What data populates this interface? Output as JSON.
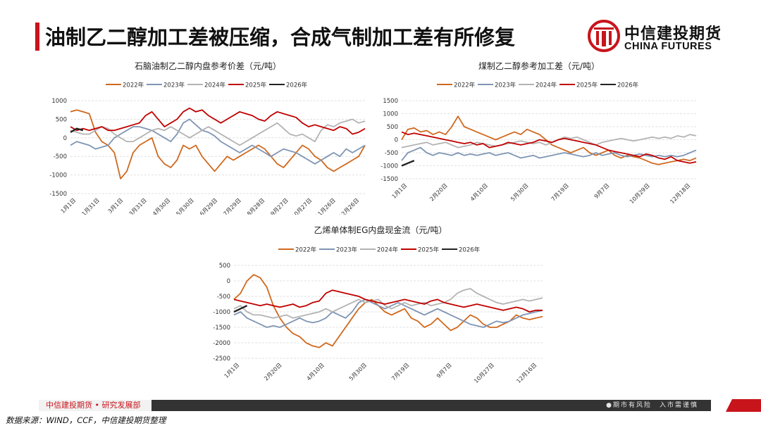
{
  "page": {
    "title": "油制乙二醇加工差被压缩，合成气制加工差有所修复",
    "source": "数据来源：WIND，CCF，中信建投期货整理"
  },
  "logo": {
    "cn": "中信建投期货",
    "en": "CHINA FUTURES"
  },
  "footer": {
    "left": "中信建投期货 • 研究发展部",
    "right": "●期市有风险　入市需谨慎"
  },
  "colors": {
    "2022年": "#d0691f",
    "2023年": "#7f95b3",
    "2024年": "#b3b3b3",
    "2025年": "#c00000",
    "2026年": "#222222",
    "accent": "#c8141b"
  },
  "chart_data": [
    {
      "type": "line",
      "title": "石脑油制乙二醇内盘参考价差（元/吨）",
      "ylim": [
        -1500,
        1000
      ],
      "yticks": [
        -1500,
        -1000,
        -500,
        0,
        500,
        1000
      ],
      "xticks": [
        "1月1日",
        "1月31日",
        "3月1日",
        "3月31日",
        "4月30日",
        "5月30日",
        "6月29日",
        "7月29日",
        "8月28日",
        "9月27日",
        "10月27日",
        "11月26日",
        "12月26日"
      ],
      "grid": "horizontal dashed",
      "legend": "top",
      "series": [
        {
          "name": "2022年",
          "values": [
            700,
            750,
            700,
            650,
            150,
            -100,
            -200,
            -400,
            -1100,
            -900,
            -400,
            -200,
            -100,
            0,
            -500,
            -700,
            -800,
            -600,
            -200,
            -300,
            -200,
            -500,
            -700,
            -900,
            -700,
            -500,
            -600,
            -500,
            -400,
            -300,
            -200,
            -300,
            -500,
            -700,
            -800,
            -600,
            -400,
            -200,
            -300,
            -500,
            -600,
            -800,
            -900,
            -800,
            -700,
            -600,
            -500,
            -200
          ]
        },
        {
          "name": "2023年",
          "values": [
            -200,
            -100,
            -150,
            -200,
            -300,
            -250,
            -200,
            0,
            100,
            200,
            300,
            300,
            250,
            200,
            100,
            0,
            -100,
            100,
            400,
            500,
            350,
            200,
            150,
            50,
            -100,
            -200,
            -300,
            -400,
            -300,
            -200,
            -300,
            -400,
            -500,
            -400,
            -300,
            -350,
            -400,
            -500,
            -600,
            -700,
            -600,
            -500,
            -400,
            -500,
            -300,
            -400,
            -300,
            -200
          ]
        },
        {
          "name": "2024年",
          "values": [
            200,
            150,
            100,
            100,
            200,
            300,
            250,
            100,
            0,
            -100,
            -100,
            0,
            100,
            200,
            250,
            200,
            300,
            200,
            100,
            0,
            100,
            200,
            300,
            200,
            100,
            0,
            -100,
            -200,
            -100,
            0,
            100,
            200,
            300,
            400,
            250,
            100,
            50,
            100,
            0,
            -100,
            200,
            350,
            300,
            400,
            450,
            500,
            400,
            450
          ]
        },
        {
          "name": "2025年",
          "values": [
            300,
            200,
            250,
            200,
            250,
            300,
            200,
            200,
            250,
            300,
            350,
            400,
            600,
            700,
            500,
            300,
            400,
            500,
            700,
            800,
            700,
            750,
            600,
            500,
            400,
            500,
            600,
            700,
            650,
            600,
            500,
            450,
            600,
            700,
            650,
            600,
            550,
            400,
            300,
            350,
            300,
            250,
            200,
            300,
            250,
            100,
            150,
            250
          ]
        },
        {
          "name": "2026年",
          "values": [
            150,
            250,
            200
          ]
        }
      ]
    },
    {
      "type": "line",
      "title": "煤制乙二醇参考加工差（元/吨）",
      "ylim": [
        -1500,
        1500
      ],
      "yticks": [
        -1500,
        -1000,
        -500,
        0,
        500,
        1000,
        1500
      ],
      "xticks": [
        "1月1日",
        "2月20日",
        "4月10日",
        "5月30日",
        "7月19日",
        "9月7日",
        "10月29日",
        "12月18日"
      ],
      "grid": "horizontal dashed",
      "legend": "top",
      "series": [
        {
          "name": "2022年",
          "values": [
            0,
            400,
            450,
            300,
            350,
            200,
            300,
            200,
            500,
            900,
            500,
            400,
            300,
            200,
            100,
            0,
            100,
            200,
            300,
            200,
            400,
            300,
            200,
            0,
            -200,
            -300,
            -400,
            -500,
            -400,
            -300,
            -500,
            -600,
            -500,
            -400,
            -600,
            -700,
            -600,
            -650,
            -700,
            -800,
            -900,
            -950,
            -900,
            -850,
            -800,
            -750,
            -800,
            -700
          ]
        },
        {
          "name": "2023年",
          "values": [
            -800,
            -500,
            -400,
            -300,
            -500,
            -600,
            -500,
            -550,
            -600,
            -500,
            -600,
            -550,
            -600,
            -550,
            -500,
            -600,
            -550,
            -500,
            -600,
            -700,
            -650,
            -600,
            -700,
            -650,
            -600,
            -550,
            -500,
            -550,
            -600,
            -650,
            -600,
            -500,
            -600,
            -550,
            -500,
            -600,
            -650,
            -600,
            -550,
            -600,
            -650,
            -600,
            -650,
            -600,
            -650,
            -600,
            -500,
            -400
          ]
        },
        {
          "name": "2024年",
          "values": [
            -300,
            -250,
            -200,
            -150,
            -100,
            -200,
            -150,
            -100,
            -200,
            -300,
            -250,
            -200,
            -100,
            -150,
            -200,
            -250,
            -200,
            -150,
            -100,
            -50,
            -100,
            -150,
            -100,
            -200,
            -100,
            0,
            100,
            50,
            100,
            0,
            -100,
            -200,
            -100,
            -50,
            0,
            50,
            0,
            -50,
            0,
            50,
            100,
            50,
            100,
            50,
            150,
            100,
            200,
            150
          ]
        },
        {
          "name": "2025年",
          "values": [
            300,
            200,
            250,
            200,
            150,
            100,
            50,
            0,
            -50,
            -100,
            -150,
            -100,
            -200,
            -150,
            -300,
            -250,
            -200,
            -100,
            -150,
            -200,
            -150,
            -100,
            0,
            -50,
            -100,
            0,
            50,
            0,
            -50,
            -100,
            -150,
            -200,
            -300,
            -400,
            -450,
            -500,
            -550,
            -600,
            -650,
            -550,
            -600,
            -700,
            -750,
            -650,
            -800,
            -850,
            -900,
            -850
          ]
        },
        {
          "name": "2026年",
          "values": [
            -1000,
            -900,
            -800
          ]
        }
      ]
    },
    {
      "type": "line",
      "title": "乙烯单体制EG内盘现金流（元/吨）",
      "ylim": [
        -2500,
        500
      ],
      "yticks": [
        -2500,
        -2000,
        -1500,
        -1000,
        -500,
        0,
        500
      ],
      "xticks": [
        "1月1日",
        "2月20日",
        "4月10日",
        "5月30日",
        "7月19日",
        "9月7日",
        "10月27日",
        "12月16日"
      ],
      "grid": "horizontal dashed",
      "legend": "top",
      "series": [
        {
          "name": "2022年",
          "values": [
            -600,
            -400,
            0,
            200,
            100,
            -200,
            -800,
            -1200,
            -1500,
            -1700,
            -1800,
            -2000,
            -2100,
            -2150,
            -2000,
            -2100,
            -1800,
            -1500,
            -1200,
            -900,
            -700,
            -600,
            -800,
            -1000,
            -1100,
            -1000,
            -900,
            -1200,
            -1300,
            -1500,
            -1400,
            -1200,
            -1400,
            -1600,
            -1500,
            -1300,
            -1100,
            -1200,
            -1400,
            -1500,
            -1500,
            -1400,
            -1300,
            -1100,
            -1200,
            -1250,
            -1200,
            -1150
          ]
        },
        {
          "name": "2023年",
          "values": [
            -1100,
            -1000,
            -1200,
            -1300,
            -1400,
            -1500,
            -1450,
            -1500,
            -1400,
            -1300,
            -1200,
            -1300,
            -1350,
            -1300,
            -1200,
            -1000,
            -1100,
            -1200,
            -1000,
            -700,
            -600,
            -700,
            -800,
            -900,
            -800,
            -700,
            -800,
            -900,
            -1000,
            -1100,
            -1000,
            -900,
            -1000,
            -1100,
            -1200,
            -1300,
            -1400,
            -1450,
            -1500,
            -1400,
            -1300,
            -1350,
            -1300,
            -1200,
            -1100,
            -1050,
            -1000,
            -950
          ]
        },
        {
          "name": "2024年",
          "values": [
            -900,
            -800,
            -1000,
            -1100,
            -1100,
            -1150,
            -1200,
            -1150,
            -1100,
            -1200,
            -1150,
            -1100,
            -1050,
            -1000,
            -900,
            -1000,
            -900,
            -800,
            -700,
            -600,
            -700,
            -650,
            -600,
            -800,
            -900,
            -800,
            -700,
            -800,
            -750,
            -700,
            -800,
            -750,
            -700,
            -600,
            -400,
            -300,
            -250,
            -400,
            -500,
            -600,
            -700,
            -750,
            -700,
            -650,
            -600,
            -650,
            -600,
            -550
          ]
        },
        {
          "name": "2025年",
          "values": [
            -600,
            -650,
            -700,
            -750,
            -800,
            -750,
            -800,
            -850,
            -800,
            -750,
            -850,
            -800,
            -700,
            -650,
            -400,
            -300,
            -350,
            -400,
            -450,
            -500,
            -600,
            -650,
            -700,
            -750,
            -700,
            -650,
            -600,
            -650,
            -700,
            -750,
            -650,
            -600,
            -700,
            -750,
            -800,
            -850,
            -800,
            -750,
            -800,
            -850,
            -900,
            -950,
            -900,
            -850,
            -900,
            -1000,
            -950,
            -950
          ]
        },
        {
          "name": "2026年",
          "values": [
            -1000,
            -900,
            -800
          ]
        }
      ]
    }
  ]
}
